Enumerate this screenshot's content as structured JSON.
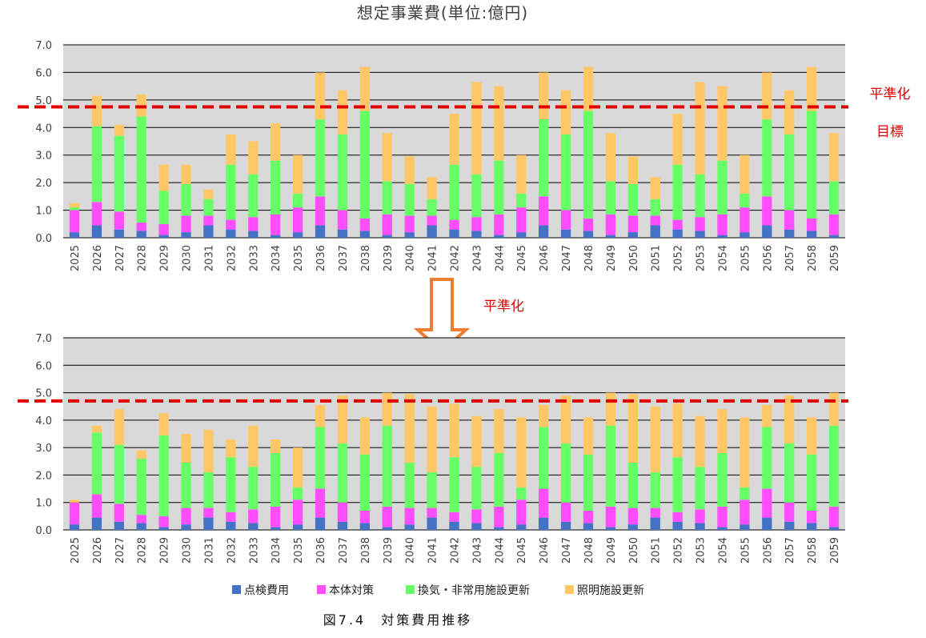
{
  "title": "想定事業費(単位:億円)",
  "arrow_label": "平準化",
  "target_label": [
    "平準化",
    "目標"
  ],
  "caption": "図7.4　対策費用推移",
  "colors": {
    "plot_bg": "#d9d9d9",
    "grid": "#000000",
    "target_line": "#e00000",
    "arrow": "#ed7d31"
  },
  "legend": [
    {
      "name": "点検費用",
      "color": "#4472c4"
    },
    {
      "name": "本体対策",
      "color": "#ff4dff"
    },
    {
      "name": "換気・非常用施設更新",
      "color": "#66ff66"
    },
    {
      "name": "照明施設更新",
      "color": "#ffc766"
    }
  ],
  "chart_data": [
    {
      "type": "bar",
      "stacked": true,
      "title": "想定事業費(単位:億円)",
      "ylim": [
        0,
        7
      ],
      "yticks": [
        "0.0",
        "1.0",
        "2.0",
        "3.0",
        "4.0",
        "5.0",
        "6.0",
        "7.0"
      ],
      "grid": true,
      "target_value": 4.75,
      "categories": [
        "2025",
        "2026",
        "2027",
        "2028",
        "2029",
        "2030",
        "2031",
        "2032",
        "2033",
        "2034",
        "2035",
        "2036",
        "2037",
        "2038",
        "2039",
        "2040",
        "2041",
        "2042",
        "2043",
        "2044",
        "2045",
        "2046",
        "2047",
        "2048",
        "2049",
        "2050",
        "2051",
        "2052",
        "2053",
        "2054",
        "2055",
        "2056",
        "2057",
        "2058",
        "2059"
      ],
      "series": [
        {
          "name": "点検費用",
          "values": [
            0.2,
            0.45,
            0.3,
            0.25,
            0.1,
            0.2,
            0.45,
            0.3,
            0.25,
            0.1,
            0.2,
            0.45,
            0.3,
            0.25,
            0.1,
            0.2,
            0.45,
            0.3,
            0.25,
            0.1,
            0.2,
            0.45,
            0.3,
            0.25,
            0.1,
            0.2,
            0.45,
            0.3,
            0.25,
            0.1,
            0.2,
            0.45,
            0.3,
            0.25,
            0.1
          ]
        },
        {
          "name": "本体対策",
          "values": [
            0.8,
            0.85,
            0.65,
            0.3,
            0.4,
            0.6,
            0.35,
            0.35,
            0.5,
            0.75,
            0.9,
            1.05,
            0.7,
            0.45,
            0.75,
            0.6,
            0.35,
            0.35,
            0.5,
            0.75,
            0.9,
            1.05,
            0.7,
            0.45,
            0.75,
            0.6,
            0.35,
            0.35,
            0.5,
            0.75,
            0.9,
            1.05,
            0.7,
            0.45,
            0.75
          ]
        },
        {
          "name": "換気・非常用施設更新",
          "values": [
            0.1,
            2.75,
            2.75,
            3.85,
            1.2,
            1.15,
            0.6,
            2.0,
            1.55,
            1.95,
            0.5,
            2.8,
            2.75,
            3.9,
            1.2,
            1.15,
            0.6,
            2.0,
            1.55,
            1.95,
            0.5,
            2.8,
            2.75,
            3.9,
            1.2,
            1.15,
            0.6,
            2.0,
            1.55,
            1.95,
            0.5,
            2.8,
            2.75,
            3.9,
            1.2
          ]
        },
        {
          "name": "照明施設更新",
          "values": [
            0.15,
            1.1,
            0.4,
            0.8,
            0.95,
            0.7,
            0.35,
            1.1,
            1.2,
            1.35,
            1.4,
            1.7,
            1.6,
            1.6,
            1.75,
            1.0,
            0.8,
            1.85,
            3.35,
            2.7,
            1.4,
            1.7,
            1.6,
            1.6,
            1.75,
            1.0,
            0.8,
            1.85,
            3.35,
            2.7,
            1.4,
            1.7,
            1.6,
            1.6,
            1.75
          ]
        }
      ]
    },
    {
      "type": "bar",
      "stacked": true,
      "ylim": [
        0,
        7
      ],
      "yticks": [
        "0.0",
        "1.0",
        "2.0",
        "3.0",
        "4.0",
        "5.0",
        "6.0",
        "7.0"
      ],
      "grid": true,
      "target_value": 4.7,
      "categories": [
        "2025",
        "2026",
        "2027",
        "2028",
        "2029",
        "2030",
        "2031",
        "2032",
        "2033",
        "2034",
        "2035",
        "2036",
        "2037",
        "2038",
        "2039",
        "2040",
        "2041",
        "2042",
        "2043",
        "2044",
        "2045",
        "2046",
        "2047",
        "2048",
        "2049",
        "2050",
        "2051",
        "2052",
        "2053",
        "2054",
        "2055",
        "2056",
        "2057",
        "2058",
        "2059"
      ],
      "series": [
        {
          "name": "点検費用",
          "values": [
            0.2,
            0.45,
            0.3,
            0.25,
            0.1,
            0.2,
            0.45,
            0.3,
            0.25,
            0.1,
            0.2,
            0.45,
            0.3,
            0.25,
            0.1,
            0.2,
            0.45,
            0.3,
            0.25,
            0.1,
            0.2,
            0.45,
            0.3,
            0.25,
            0.1,
            0.2,
            0.45,
            0.3,
            0.25,
            0.1,
            0.2,
            0.45,
            0.3,
            0.25,
            0.1
          ]
        },
        {
          "name": "本体対策",
          "values": [
            0.8,
            0.85,
            0.65,
            0.3,
            0.4,
            0.6,
            0.35,
            0.35,
            0.5,
            0.75,
            0.9,
            1.05,
            0.7,
            0.45,
            0.75,
            0.6,
            0.35,
            0.35,
            0.5,
            0.75,
            0.9,
            1.05,
            0.7,
            0.45,
            0.75,
            0.6,
            0.35,
            0.35,
            0.5,
            0.75,
            0.9,
            1.05,
            0.7,
            0.45,
            0.75
          ]
        },
        {
          "name": "換気・非常用施設更新",
          "values": [
            0,
            2.25,
            2.15,
            2.05,
            2.95,
            1.65,
            1.3,
            2.0,
            1.55,
            1.95,
            0.45,
            2.25,
            2.15,
            2.05,
            2.95,
            1.65,
            1.3,
            2.0,
            1.55,
            1.95,
            0.45,
            2.25,
            2.15,
            2.05,
            2.95,
            1.65,
            1.3,
            2.0,
            1.55,
            1.95,
            0.45,
            2.25,
            2.15,
            2.05,
            2.95
          ]
        },
        {
          "name": "照明施設更新",
          "values": [
            0.1,
            0.25,
            1.3,
            0.3,
            0.8,
            1.05,
            1.55,
            0.65,
            1.5,
            0.5,
            1.45,
            0.8,
            1.75,
            1.35,
            1.2,
            2.5,
            2.4,
            1.95,
            1.85,
            1.6,
            2.55,
            0.8,
            1.75,
            1.35,
            1.2,
            2.5,
            2.4,
            1.95,
            1.85,
            1.6,
            2.55,
            0.8,
            1.75,
            1.35,
            1.2
          ]
        }
      ]
    }
  ]
}
